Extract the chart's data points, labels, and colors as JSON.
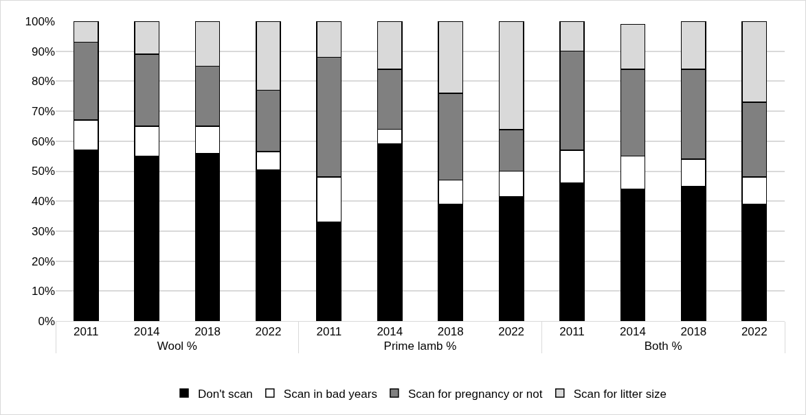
{
  "chart_data": {
    "type": "bar",
    "stacked": true,
    "categories": [
      "2011",
      "2014",
      "2018",
      "2022",
      "2011",
      "2014",
      "2018",
      "2022",
      "2011",
      "2014",
      "2018",
      "2022"
    ],
    "annotations": [
      "Wool %",
      "Prime lamb %",
      "Both %"
    ],
    "series": [
      {
        "name": "Don't scan",
        "color": "#000000",
        "values": [
          57,
          55,
          56,
          50.5,
          33,
          59,
          39,
          41.5,
          46,
          44,
          45,
          39
        ]
      },
      {
        "name": "Scan in bad years",
        "color": "#ffffff",
        "values": [
          10,
          10,
          9,
          6,
          15,
          5,
          8,
          8.5,
          11,
          11,
          9,
          9
        ]
      },
      {
        "name": "Scan for pregnancy or not",
        "color": "#808080",
        "values": [
          26,
          24,
          20,
          20.5,
          40,
          20,
          29,
          13.8,
          33,
          29,
          30,
          25
        ]
      },
      {
        "name": "Scan for litter size",
        "color": "#d9d9d9",
        "values": [
          7,
          11,
          15,
          23,
          12,
          16,
          24,
          36.2,
          10,
          15,
          16,
          27
        ]
      }
    ],
    "ylim": [
      0,
      100
    ],
    "yticks": [
      {
        "value": 0,
        "label": "0%"
      },
      {
        "value": 10,
        "label": "10%"
      },
      {
        "value": 20,
        "label": "20%"
      },
      {
        "value": 30,
        "label": "30%"
      },
      {
        "value": 40,
        "label": "40%"
      },
      {
        "value": 50,
        "label": "50%"
      },
      {
        "value": 60,
        "label": "60%"
      },
      {
        "value": 70,
        "label": "70%"
      },
      {
        "value": 80,
        "label": "80%"
      },
      {
        "value": 90,
        "label": "90%"
      },
      {
        "value": 100,
        "label": "100%"
      }
    ],
    "grid": "y",
    "legend": "bottom"
  }
}
